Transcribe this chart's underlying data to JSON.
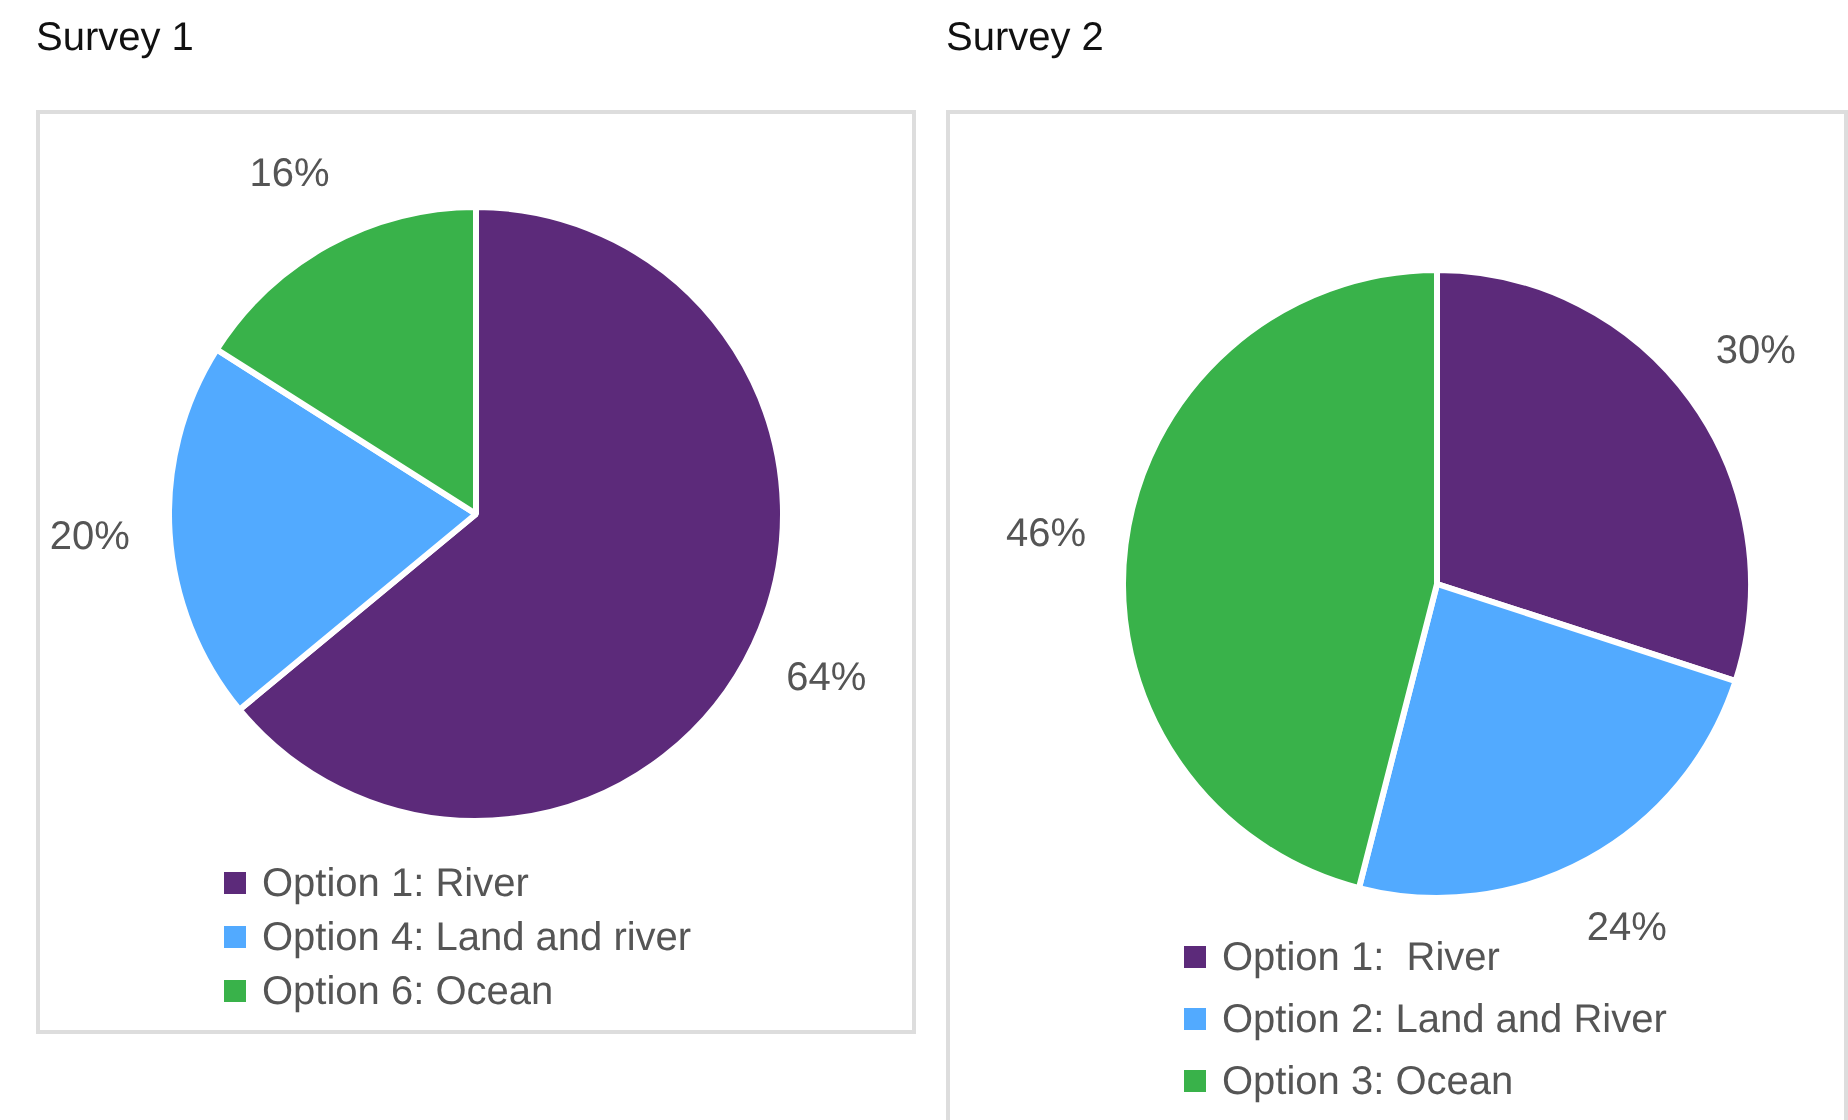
{
  "chart_data": [
    {
      "type": "pie",
      "title": "Survey 1",
      "categories": [
        "Option 1: River",
        "Option 4: Land and river",
        "Option 6: Ocean"
      ],
      "values": [
        64,
        20,
        16
      ],
      "colors": [
        "#5c2a7a",
        "#52aaff",
        "#39b24a"
      ],
      "value_labels": [
        "64%",
        "20%",
        "16%"
      ],
      "legend": "bottom"
    },
    {
      "type": "pie",
      "title": "Survey 2",
      "categories": [
        "Option 1:  River",
        "Option 2: Land and River",
        "Option 3: Ocean"
      ],
      "values": [
        30,
        24,
        46
      ],
      "colors": [
        "#5c2a7a",
        "#52aaff",
        "#39b24a"
      ],
      "value_labels": [
        "30%",
        "24%",
        "46%"
      ],
      "legend": "bottom"
    }
  ]
}
